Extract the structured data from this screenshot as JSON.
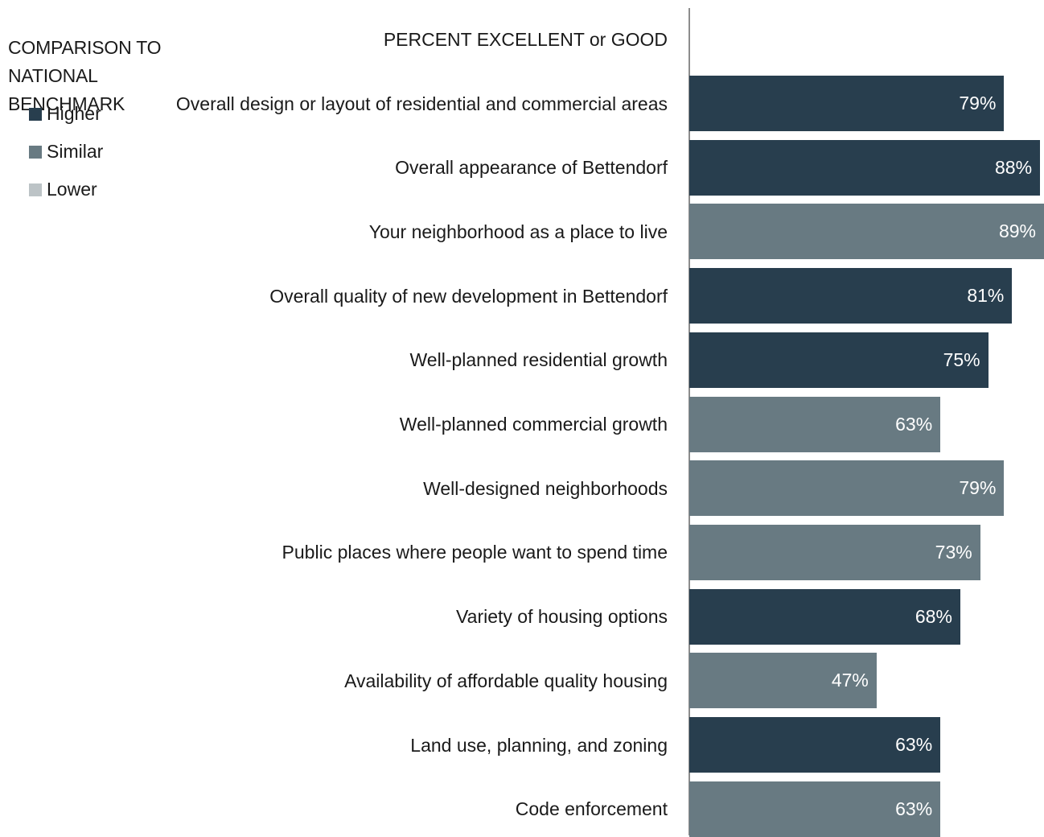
{
  "legend": {
    "title": "COMPARISON TO\nNATIONAL\nBENCHMARK",
    "items": [
      {
        "label": "Higher",
        "color": "#283e4e"
      },
      {
        "label": "Similar",
        "color": "#687a82"
      },
      {
        "label": "Lower",
        "color": "#bcc3c6"
      }
    ]
  },
  "chart_data": {
    "type": "bar",
    "orientation": "horizontal",
    "title": "PERCENT EXCELLENT or GOOD",
    "categories": [
      "Overall design or layout of residential and commercial areas",
      "Overall appearance of Bettendorf",
      "Your neighborhood as a place to live",
      "Overall quality of new development in Bettendorf",
      "Well-planned residential growth",
      "Well-planned commercial growth",
      "Well-designed neighborhoods",
      "Public places where people want to spend time",
      "Variety of housing options",
      "Availability of affordable quality housing",
      "Land use, planning, and zoning",
      "Code enforcement"
    ],
    "values": [
      79,
      88,
      89,
      81,
      75,
      63,
      79,
      73,
      68,
      47,
      63,
      63
    ],
    "value_labels": [
      "79%",
      "88%",
      "89%",
      "81%",
      "75%",
      "63%",
      "79%",
      "73%",
      "68%",
      "47%",
      "63%",
      "63%"
    ],
    "comparison": [
      "Higher",
      "Higher",
      "Similar",
      "Higher",
      "Higher",
      "Similar",
      "Similar",
      "Similar",
      "Higher",
      "Similar",
      "Higher",
      "Similar"
    ],
    "xlim": [
      0,
      89
    ],
    "legend_position": "top-left",
    "grid": false
  }
}
